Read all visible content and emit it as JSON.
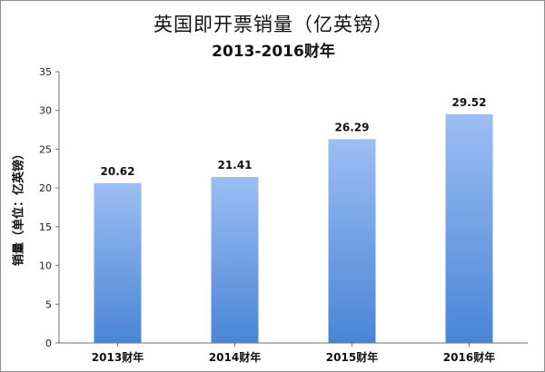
{
  "chart_data": {
    "type": "bar",
    "title": "英国即开票销量（亿英镑）",
    "subtitle": "2013-2016财年",
    "xlabel": "",
    "ylabel": "销量（单位：亿英镑）",
    "categories": [
      "2013财年",
      "2014财年",
      "2015财年",
      "2016财年"
    ],
    "values": [
      20.62,
      21.41,
      26.29,
      29.52
    ],
    "value_labels": [
      "20.62",
      "21.41",
      "26.29",
      "29.52"
    ],
    "ylim": [
      0,
      35
    ],
    "yticks": [
      0,
      5,
      10,
      15,
      20,
      25,
      30,
      35
    ],
    "ytick_labels": [
      "0",
      "5",
      "10",
      "15",
      "20",
      "25",
      "30",
      "35"
    ],
    "grid": false,
    "legend": "none",
    "colors": {
      "bar_top": "#9bbef3",
      "bar_bottom": "#4a85d6",
      "axis": "#6f6f6f"
    }
  }
}
